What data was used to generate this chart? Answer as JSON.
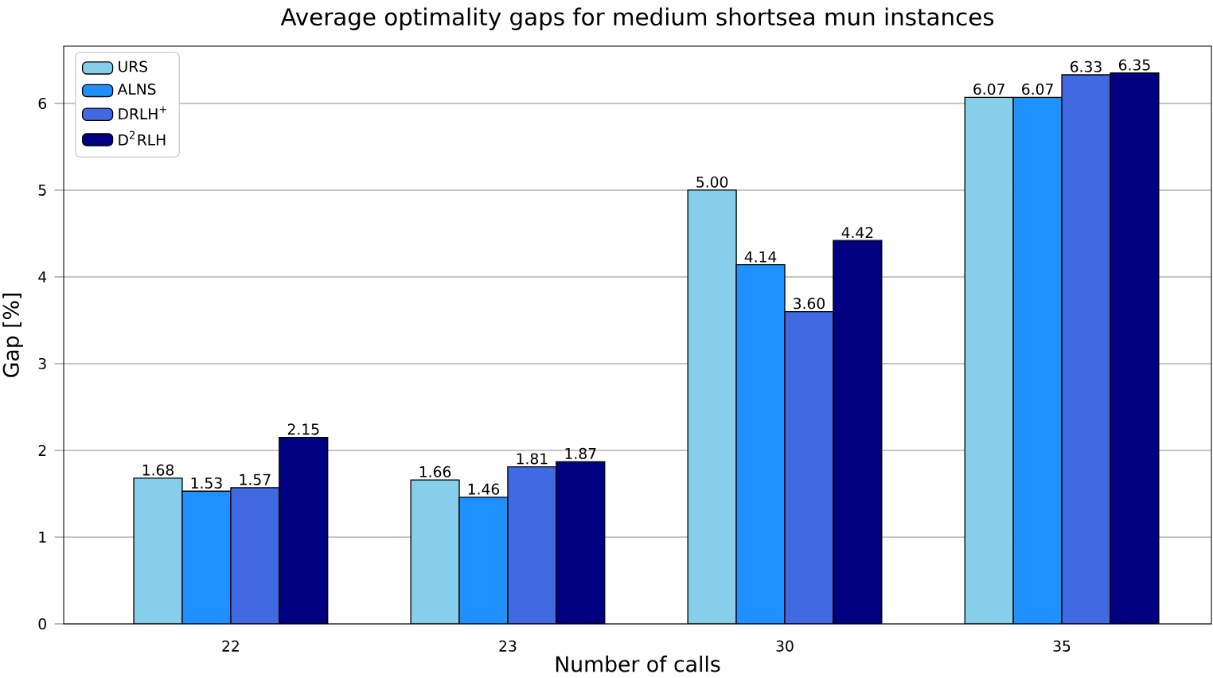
{
  "chart_data": {
    "type": "bar",
    "title": "Average optimality gaps for medium shortsea mun instances",
    "xlabel": "Number of calls",
    "ylabel": "Gap [%]",
    "categories": [
      "22",
      "23",
      "30",
      "35"
    ],
    "series": [
      {
        "name": "URS",
        "color": "#87ceeb",
        "values": [
          1.68,
          1.66,
          5.0,
          6.07
        ],
        "value_labels": [
          "1.68",
          "1.66",
          "5.00",
          "6.07"
        ]
      },
      {
        "name": "ALNS",
        "color": "#1e90ff",
        "values": [
          1.53,
          1.46,
          4.14,
          6.07
        ],
        "value_labels": [
          "1.53",
          "1.46",
          "4.14",
          "6.07"
        ]
      },
      {
        "name": "DRLH$^{+}$",
        "color": "#4169e1",
        "values": [
          1.57,
          1.81,
          3.6,
          6.33
        ],
        "value_labels": [
          "1.57",
          "1.81",
          "3.60",
          "6.33"
        ]
      },
      {
        "name": "D$^{2}$RLH",
        "color": "#000080",
        "values": [
          2.15,
          1.87,
          4.42,
          6.35
        ],
        "value_labels": [
          "2.15",
          "1.87",
          "4.42",
          "6.35"
        ]
      }
    ],
    "ylim": [
      0,
      6.66
    ],
    "yticks": [
      0,
      1,
      2,
      3,
      4,
      5,
      6
    ],
    "grid": "y",
    "legend": "top left"
  }
}
